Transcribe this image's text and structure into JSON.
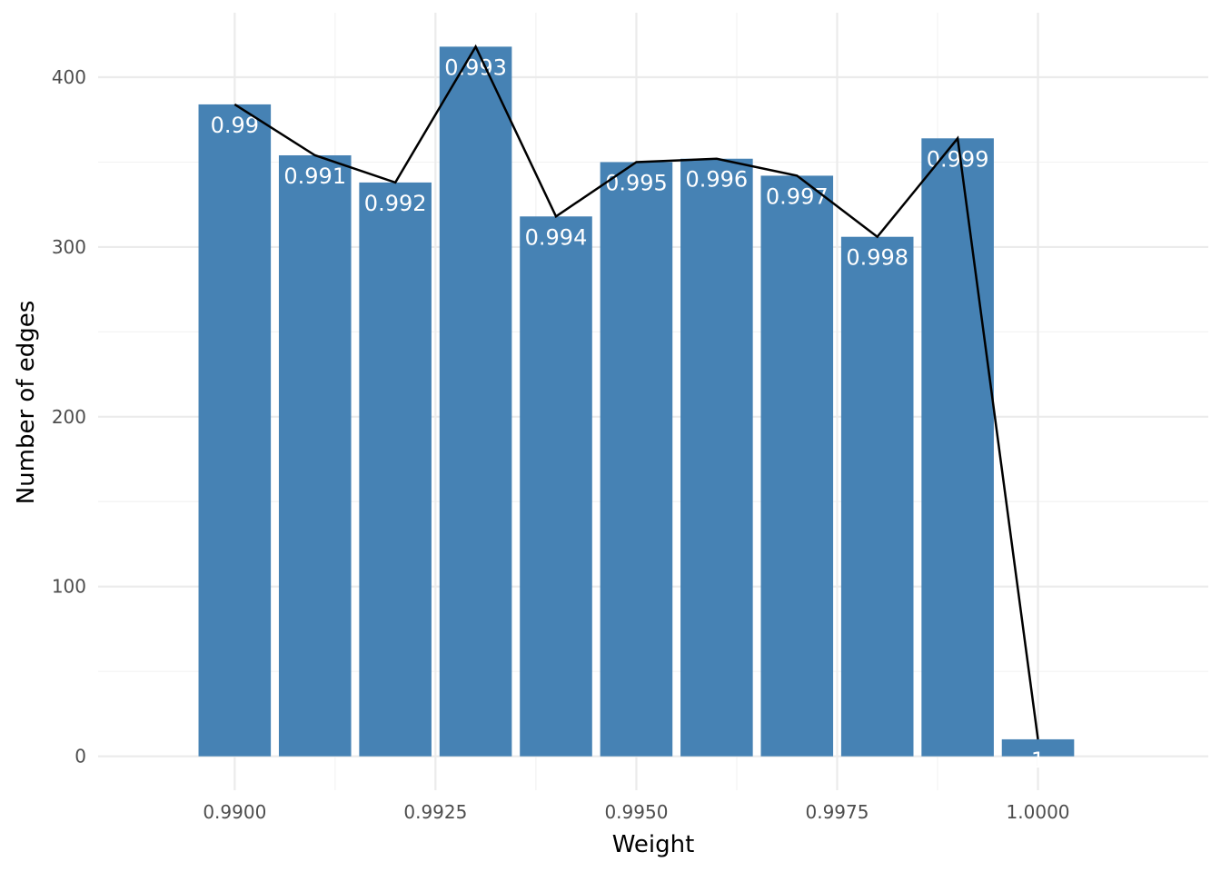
{
  "chart_data": {
    "type": "bar",
    "title": "",
    "xlabel": "Weight",
    "ylabel": "Number of edges",
    "xlim": [
      0.9883,
      1.00212
    ],
    "ylim": [
      -20,
      438
    ],
    "grid": true,
    "legend": "none",
    "x_ticks": [
      0.99,
      0.9925,
      0.995,
      0.9975,
      1.0
    ],
    "x_tick_labels": [
      "0.9900",
      "0.9925",
      "0.9950",
      "0.9975",
      "1.0000"
    ],
    "y_ticks": [
      0,
      100,
      200,
      300,
      400
    ],
    "y_tick_labels": [
      "0",
      "100",
      "200",
      "300",
      "400"
    ],
    "bar_width": 0.0009,
    "x": [
      0.99,
      0.991,
      0.992,
      0.993,
      0.994,
      0.995,
      0.996,
      0.997,
      0.998,
      0.999,
      1.0
    ],
    "values": [
      384,
      354,
      338,
      418,
      318,
      350,
      352,
      342,
      306,
      364,
      10
    ],
    "bar_labels": [
      "0.99",
      "0.991",
      "0.992",
      "0.993",
      "0.994",
      "0.995",
      "0.996",
      "0.997",
      "0.998",
      "0.999",
      "1"
    ],
    "line_values": [
      384,
      354,
      338,
      418,
      318,
      350,
      352,
      342,
      306,
      364,
      10
    ],
    "colors": {
      "bar": "#4682b4",
      "line": "#000000",
      "grid_major": "#ebebeb",
      "grid_minor": "#f3f3f3",
      "bar_label": "#ffffff"
    }
  }
}
